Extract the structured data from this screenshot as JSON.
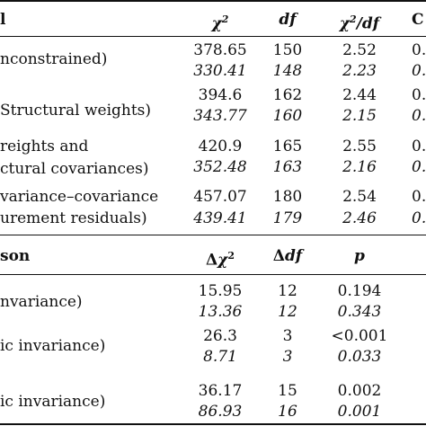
{
  "table1": {
    "headers": {
      "model": "l",
      "chi2": "χ²",
      "df": "df",
      "ratio": "χ²/df",
      "cfi": "C"
    },
    "rows": [
      {
        "label": [
          "nconstrained)"
        ],
        "chi2": [
          "378.65",
          "330.41"
        ],
        "df": [
          "150",
          "148"
        ],
        "ratio": [
          "2.52",
          "2.23"
        ],
        "cfi": [
          "0.",
          "0."
        ]
      },
      {
        "label": [
          "Structural weights)"
        ],
        "chi2": [
          "394.6",
          "343.77"
        ],
        "df": [
          "162",
          "160"
        ],
        "ratio": [
          "2.44",
          "2.15"
        ],
        "cfi": [
          "0.",
          "0."
        ]
      },
      {
        "label": [
          "reights and",
          "ctural covariances)"
        ],
        "chi2": [
          "420.9",
          "352.48"
        ],
        "df": [
          "165",
          "163"
        ],
        "ratio": [
          "2.55",
          "2.16"
        ],
        "cfi": [
          "0.",
          "0."
        ]
      },
      {
        "label": [
          "variance–covariance",
          "urement residuals)"
        ],
        "chi2": [
          "457.07",
          "439.41"
        ],
        "df": [
          "180",
          "179"
        ],
        "ratio": [
          "2.54",
          "2.46"
        ],
        "cfi": [
          "0.",
          "0."
        ]
      }
    ]
  },
  "table2": {
    "headers": {
      "comparison": "son",
      "dchi2": "Δχ²",
      "ddf": "Δdf",
      "p": "p"
    },
    "rows": [
      {
        "label": "nvariance)",
        "dchi2": [
          "15.95",
          "13.36"
        ],
        "ddf": [
          "12",
          "12"
        ],
        "p": [
          "0.194",
          "0.343"
        ]
      },
      {
        "label": "ic invariance)",
        "dchi2": [
          "26.3",
          "8.71"
        ],
        "ddf": [
          "3",
          "3"
        ],
        "p": [
          "<0.001",
          "0.033"
        ]
      },
      {
        "label": "ic invariance)",
        "dchi2": [
          "36.17",
          "86.93"
        ],
        "ddf": [
          "15",
          "16"
        ],
        "p": [
          "0.002",
          "0.001"
        ]
      }
    ]
  }
}
